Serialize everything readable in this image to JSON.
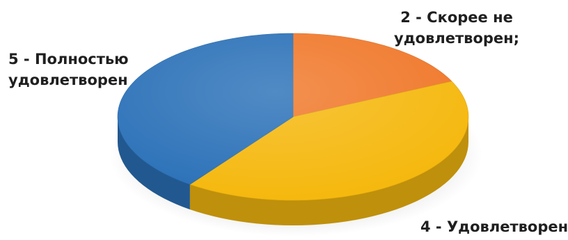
{
  "chart_data": {
    "type": "pie",
    "style": "3d",
    "title": "",
    "slices": [
      {
        "label_lines": [
          "2 - Скорее не",
          "удовлетворен;"
        ],
        "value": 18,
        "color": "#f0782a"
      },
      {
        "label_lines": [
          "4 - Удовлетворен"
        ],
        "value": 42,
        "color": "#f5b80e"
      },
      {
        "label_lines": [
          "5 - Полностью",
          "удовлетворен"
        ],
        "value": 40,
        "color": "#2b71b8"
      }
    ]
  }
}
